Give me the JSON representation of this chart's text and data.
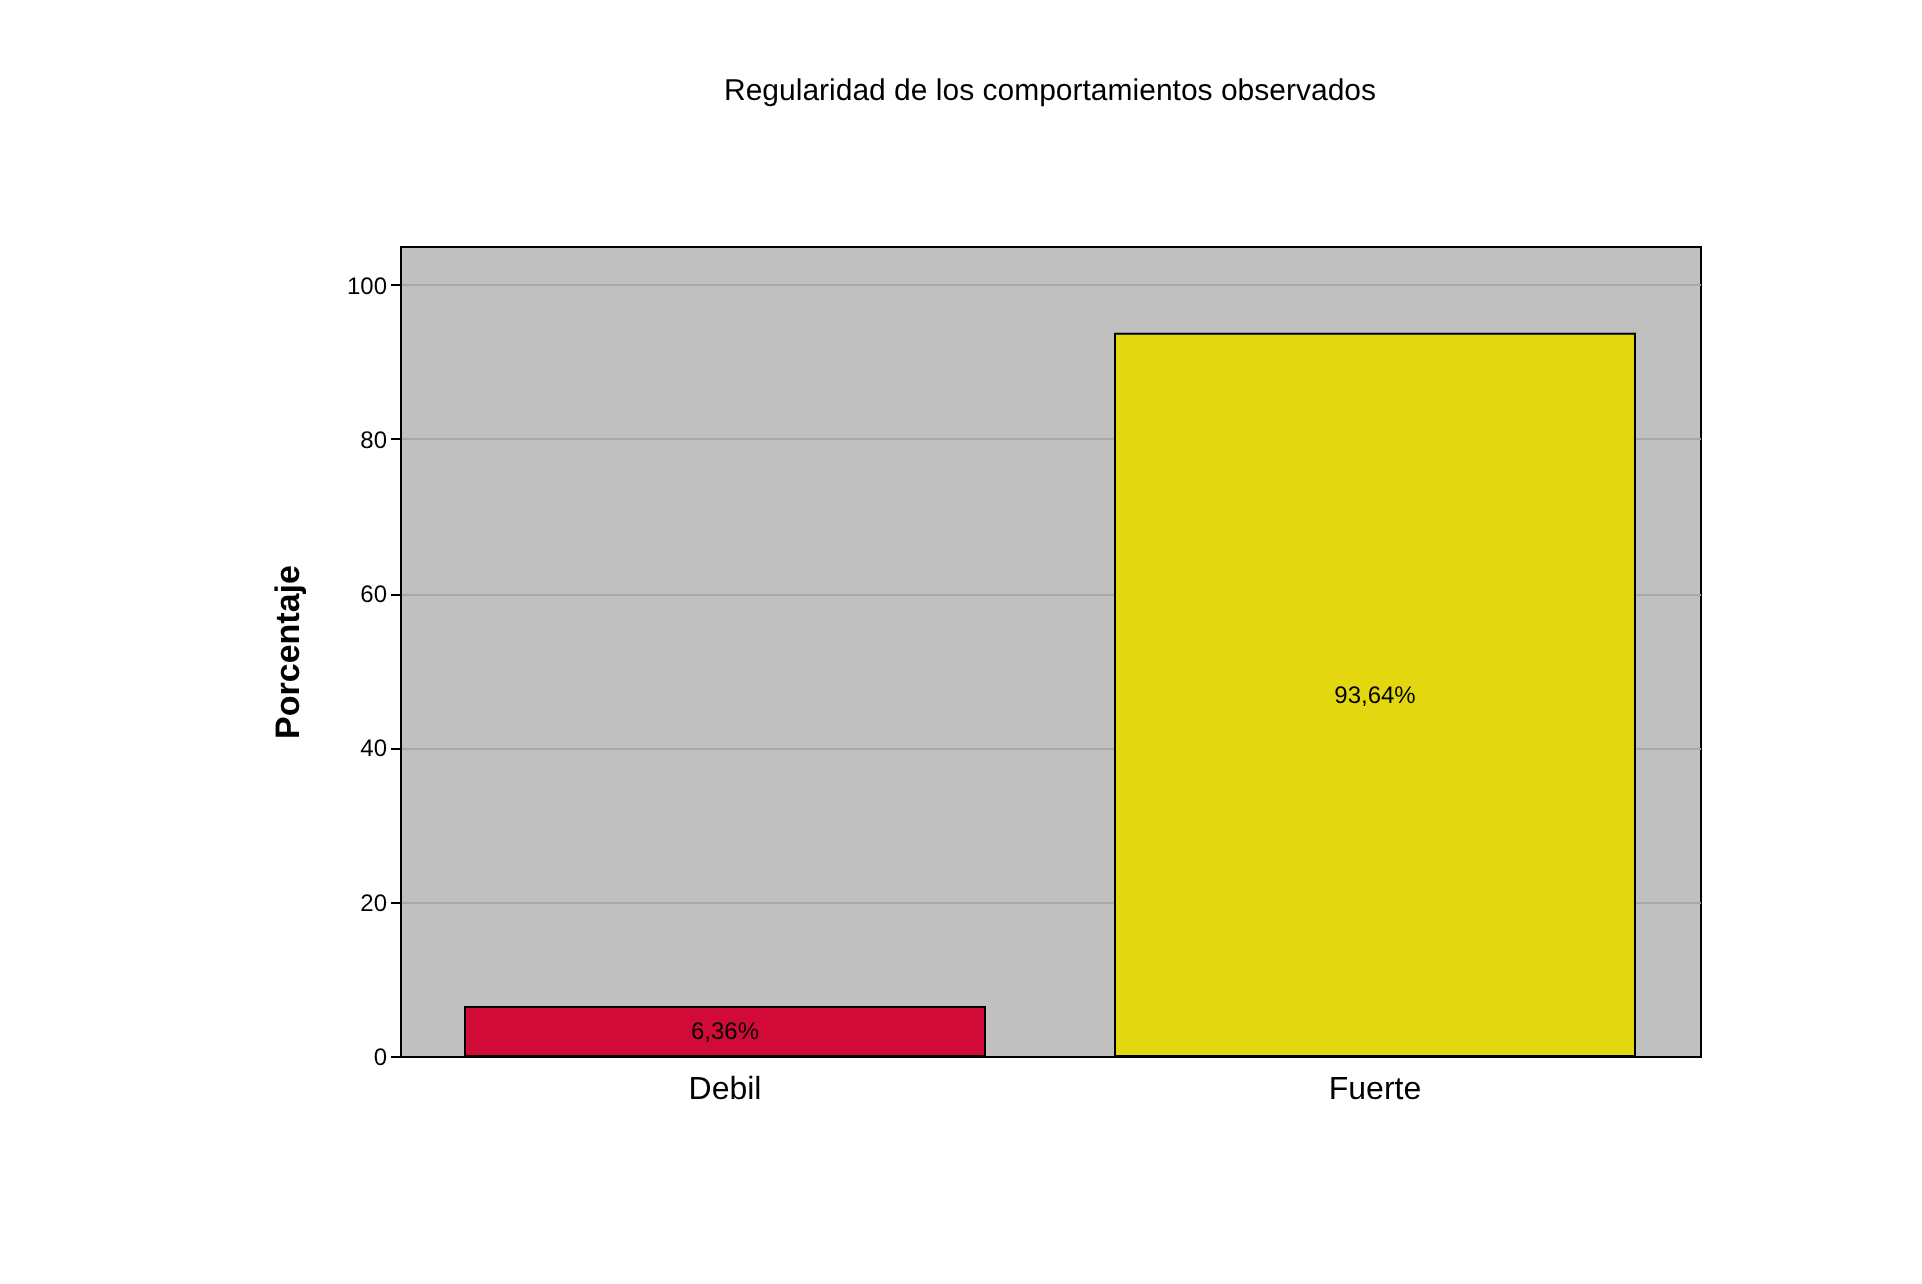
{
  "chart_data": {
    "type": "bar",
    "title": "Regularidad de los comportamientos observados",
    "ylabel": "Porcentaje",
    "categories": [
      "Debil",
      "Fuerte"
    ],
    "values": [
      6.36,
      93.64
    ],
    "colors": [
      "#d10a37",
      "#e3d80f"
    ],
    "value_labels": [
      "6,36%",
      "93,64%"
    ],
    "ylim": [
      0,
      105
    ],
    "yticks": [
      0,
      20,
      40,
      60,
      80,
      100
    ],
    "grid": "y"
  }
}
